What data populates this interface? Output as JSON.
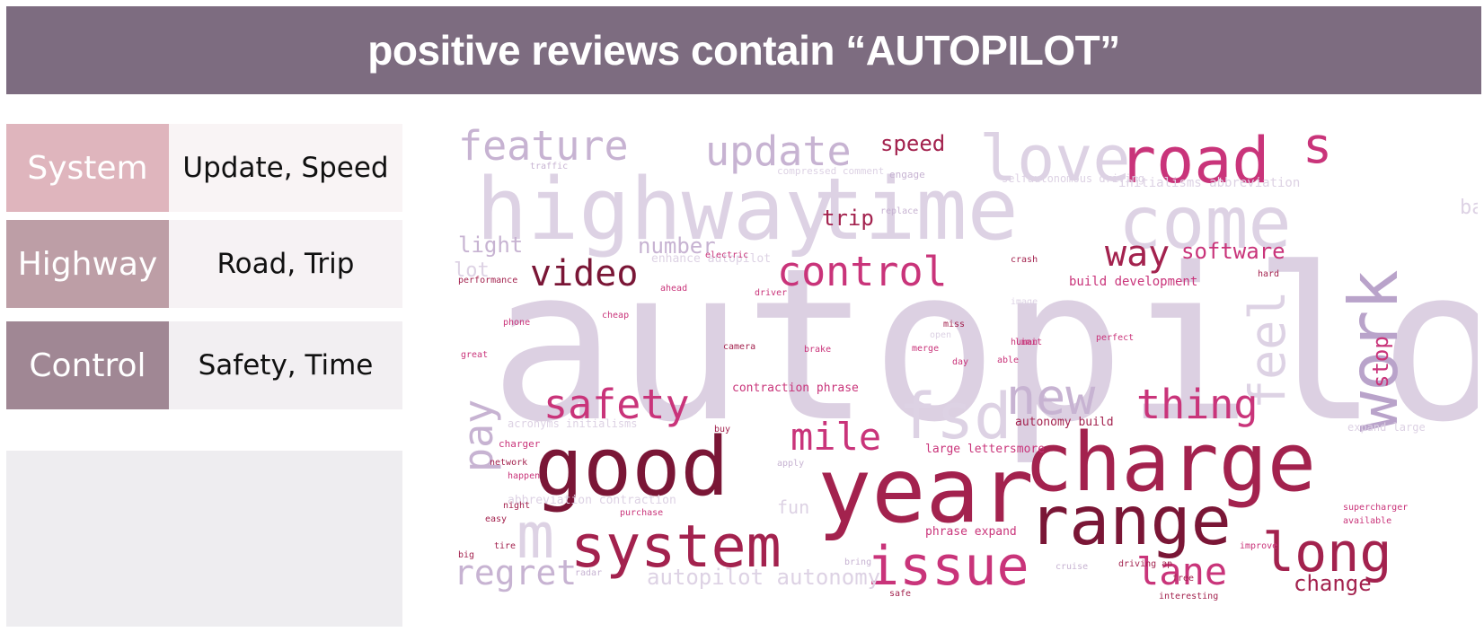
{
  "header": {
    "title": "positive reviews contain “AUTOPILOT”"
  },
  "topics": [
    {
      "label": "System",
      "keywords": "Update, Speed"
    },
    {
      "label": "Highway",
      "keywords": "Road, Trip"
    },
    {
      "label": "Control",
      "keywords": "Safety, Time"
    }
  ],
  "colors": {
    "banner": "#7d6c80",
    "system_tag": "#dfb5bd",
    "system_desc": "#f9f4f5",
    "highway_tag": "#bd9ea6",
    "highway_desc": "#f6f2f4",
    "control_tag": "#a08794",
    "control_desc": "#f2eff2",
    "blank_panel": "#eeedf0"
  },
  "wordcloud": {
    "words": [
      {
        "text": "autopilot",
        "color": "#dcd0e2"
      },
      {
        "text": "highway",
        "color": "#ddd2e4"
      },
      {
        "text": "time",
        "color": "#ddd2e4"
      },
      {
        "text": "come",
        "color": "#ddd2e4"
      },
      {
        "text": "love",
        "color": "#ddd2e4"
      },
      {
        "text": "road",
        "color": "#c9347a"
      },
      {
        "text": "s",
        "color": "#c9347a"
      },
      {
        "text": "work",
        "color": "#b9a3ca"
      },
      {
        "text": "feature",
        "color": "#c7b3d2"
      },
      {
        "text": "update",
        "color": "#c7b3d2"
      },
      {
        "text": "speed",
        "color": "#a3224e"
      },
      {
        "text": "vehicle",
        "color": "#a3224e"
      },
      {
        "text": "battery",
        "color": "#ddd2e4"
      },
      {
        "text": "trip",
        "color": "#a3224e"
      },
      {
        "text": "way",
        "color": "#a3224e"
      },
      {
        "text": "software",
        "color": "#c9347a"
      },
      {
        "text": "video",
        "color": "#7a1636"
      },
      {
        "text": "control",
        "color": "#c9347a"
      },
      {
        "text": "light",
        "color": "#c7b3d2"
      },
      {
        "text": "lot",
        "color": "#ddd2e4"
      },
      {
        "text": "number",
        "color": "#c7b3d2"
      },
      {
        "text": "fsd",
        "color": "#ddd2e4"
      },
      {
        "text": "new",
        "color": "#c7b3d2"
      },
      {
        "text": "feel",
        "color": "#ddd2e4"
      },
      {
        "text": "stop",
        "color": "#c9347a"
      },
      {
        "text": "thing",
        "color": "#c9347a"
      },
      {
        "text": "safety",
        "color": "#c9347a"
      },
      {
        "text": "pay",
        "color": "#c7b3d2"
      },
      {
        "text": "mile",
        "color": "#c9347a"
      },
      {
        "text": "good",
        "color": "#7a1636"
      },
      {
        "text": "year",
        "color": "#a3224e"
      },
      {
        "text": "charge",
        "color": "#a3224e"
      },
      {
        "text": "range",
        "color": "#7a1636"
      },
      {
        "text": "m",
        "color": "#ddd2e4"
      },
      {
        "text": "system",
        "color": "#a3224e"
      },
      {
        "text": "issue",
        "color": "#c9347a"
      },
      {
        "text": "long",
        "color": "#a3224e"
      },
      {
        "text": "regret",
        "color": "#c7b3d2"
      },
      {
        "text": "autopilot autonomy",
        "color": "#ddd2e4"
      },
      {
        "text": "lane",
        "color": "#c9347a"
      },
      {
        "text": "change",
        "color": "#a3224e"
      },
      {
        "text": "build development",
        "color": "#c9347a"
      },
      {
        "text": "initialisms abbreviation",
        "color": "#ddd2e4"
      },
      {
        "text": "selfautonomous driving",
        "color": "#ddd2e4"
      },
      {
        "text": "enhance autopilot",
        "color": "#ddd2e4"
      },
      {
        "text": "contraction phrase",
        "color": "#c9347a"
      },
      {
        "text": "autonomy build",
        "color": "#a3224e"
      },
      {
        "text": "large lettersmore",
        "color": "#c9347a"
      },
      {
        "text": "abbreviation contraction",
        "color": "#ddd2e4"
      },
      {
        "text": "acronyms initialisms",
        "color": "#ddd2e4"
      },
      {
        "text": "phrase expand",
        "color": "#c9347a"
      },
      {
        "text": "fun",
        "color": "#ddd2e4"
      },
      {
        "text": "expand large",
        "color": "#ddd2e4"
      },
      {
        "text": "compressed comment",
        "color": "#ddd2e4"
      },
      {
        "text": "traffic",
        "color": "#c7b3d2"
      },
      {
        "text": "camera",
        "color": "#a3224e"
      },
      {
        "text": "performance",
        "color": "#a3224e"
      },
      {
        "text": "charger",
        "color": "#c9347a"
      },
      {
        "text": "network",
        "color": "#a3224e"
      },
      {
        "text": "happen",
        "color": "#c9347a"
      },
      {
        "text": "supercharger",
        "color": "#c9347a"
      },
      {
        "text": "available",
        "color": "#c9347a"
      },
      {
        "text": "perfect",
        "color": "#c9347a"
      },
      {
        "text": "human",
        "color": "#c9347a"
      },
      {
        "text": "driving ap",
        "color": "#a3224e"
      },
      {
        "text": "buy",
        "color": "#a3224e"
      },
      {
        "text": "cruise",
        "color": "#c7b3d2"
      },
      {
        "text": "great",
        "color": "#c9347a"
      },
      {
        "text": "cheap",
        "color": "#c9347a"
      },
      {
        "text": "electric",
        "color": "#c9347a"
      },
      {
        "text": "driver",
        "color": "#c9347a"
      },
      {
        "text": "phone",
        "color": "#c9347a"
      },
      {
        "text": "crash",
        "color": "#a3224e"
      },
      {
        "text": "engage",
        "color": "#c7b3d2"
      },
      {
        "text": "image",
        "color": "#ddd2e4"
      },
      {
        "text": "interesting",
        "color": "#a3224e"
      },
      {
        "text": "merge",
        "color": "#c9347a"
      },
      {
        "text": "day",
        "color": "#c9347a"
      },
      {
        "text": "able",
        "color": "#c9347a"
      },
      {
        "text": "free",
        "color": "#a3224e"
      },
      {
        "text": "improve",
        "color": "#c9347a"
      },
      {
        "text": "purchase",
        "color": "#c9347a"
      },
      {
        "text": "ahead",
        "color": "#c9347a"
      },
      {
        "text": "hard",
        "color": "#a3224e"
      },
      {
        "text": "replace",
        "color": "#c7b3d2"
      },
      {
        "text": "miss",
        "color": "#a3224e"
      },
      {
        "text": "night",
        "color": "#a3224e"
      },
      {
        "text": "easy",
        "color": "#a3224e"
      },
      {
        "text": "tire",
        "color": "#a3224e"
      },
      {
        "text": "big",
        "color": "#a3224e"
      },
      {
        "text": "radar",
        "color": "#c7b3d2"
      },
      {
        "text": "bring",
        "color": "#c7b3d2"
      },
      {
        "text": "apply",
        "color": "#c7b3d2"
      },
      {
        "text": "open",
        "color": "#ddd2e4"
      },
      {
        "text": "safe",
        "color": "#a3224e"
      },
      {
        "text": "limit",
        "color": "#c9347a"
      },
      {
        "text": "brake",
        "color": "#c9347a"
      }
    ]
  }
}
